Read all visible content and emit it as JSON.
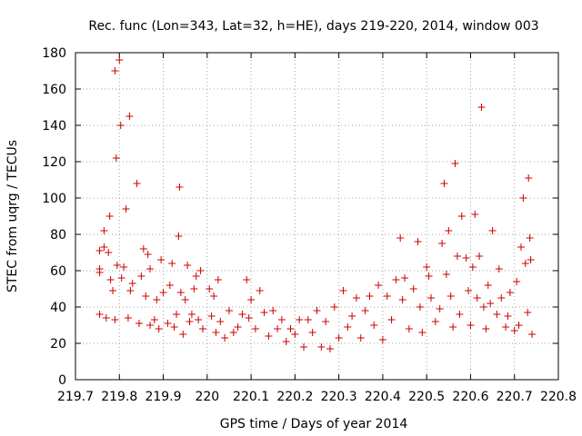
{
  "colors": {
    "series": "#cc0000",
    "grid": "#a0a0a0",
    "axis": "#000000",
    "background": "#ffffff"
  },
  "chart_data": {
    "type": "scatter",
    "title": "Rec. func (Lon=343, Lat=32, h=HE), days 219-220, 2014, window 003",
    "xlabel": "GPS time / Days of year 2014",
    "ylabel": "STEC from uqrg / TECUs",
    "xlim": [
      219.7,
      220.8
    ],
    "ylim": [
      0,
      180
    ],
    "x_ticks": [
      219.7,
      219.8,
      219.9,
      220.0,
      220.1,
      220.2,
      220.3,
      220.4,
      220.5,
      220.6,
      220.7,
      220.8
    ],
    "x_tick_labels": [
      "219.7",
      "219.8",
      "219.9",
      "220",
      "220.1",
      "220.2",
      "220.3",
      "220.4",
      "220.5",
      "220.6",
      "220.7",
      "220.8"
    ],
    "y_ticks": [
      0,
      20,
      40,
      60,
      80,
      100,
      120,
      140,
      160,
      180
    ],
    "y_tick_labels": [
      "0",
      "20",
      "40",
      "60",
      "80",
      "100",
      "120",
      "140",
      "160",
      "180"
    ],
    "grid": true,
    "marker": "+",
    "series": [
      {
        "name": "STEC",
        "points": [
          [
            219.755,
            36
          ],
          [
            219.755,
            59
          ],
          [
            219.755,
            61
          ],
          [
            219.755,
            71
          ],
          [
            219.765,
            73
          ],
          [
            219.765,
            82
          ],
          [
            219.77,
            34
          ],
          [
            219.775,
            70
          ],
          [
            219.778,
            90
          ],
          [
            219.78,
            55
          ],
          [
            219.785,
            49
          ],
          [
            219.79,
            33
          ],
          [
            219.79,
            170
          ],
          [
            219.793,
            122
          ],
          [
            219.795,
            63
          ],
          [
            219.8,
            176
          ],
          [
            219.803,
            140
          ],
          [
            219.805,
            56
          ],
          [
            219.81,
            62
          ],
          [
            219.815,
            94
          ],
          [
            219.82,
            34
          ],
          [
            219.823,
            145
          ],
          [
            219.825,
            49
          ],
          [
            219.83,
            53
          ],
          [
            219.84,
            108
          ],
          [
            219.845,
            31
          ],
          [
            219.85,
            57
          ],
          [
            219.855,
            72
          ],
          [
            219.86,
            46
          ],
          [
            219.865,
            69
          ],
          [
            219.87,
            30
          ],
          [
            219.87,
            61
          ],
          [
            219.88,
            33
          ],
          [
            219.885,
            44
          ],
          [
            219.89,
            28
          ],
          [
            219.895,
            66
          ],
          [
            219.9,
            48
          ],
          [
            219.91,
            31
          ],
          [
            219.915,
            52
          ],
          [
            219.92,
            64
          ],
          [
            219.925,
            29
          ],
          [
            219.93,
            36
          ],
          [
            219.935,
            79
          ],
          [
            219.937,
            106
          ],
          [
            219.94,
            48
          ],
          [
            219.945,
            25
          ],
          [
            219.95,
            44
          ],
          [
            219.955,
            63
          ],
          [
            219.96,
            32
          ],
          [
            219.965,
            36
          ],
          [
            219.97,
            50
          ],
          [
            219.975,
            57
          ],
          [
            219.98,
            33
          ],
          [
            219.985,
            60
          ],
          [
            219.99,
            28
          ],
          [
            220.005,
            50
          ],
          [
            220.01,
            35
          ],
          [
            220.015,
            46
          ],
          [
            220.02,
            26
          ],
          [
            220.025,
            55
          ],
          [
            220.03,
            32
          ],
          [
            220.04,
            23
          ],
          [
            220.05,
            38
          ],
          [
            220.06,
            26
          ],
          [
            220.07,
            29
          ],
          [
            220.08,
            36
          ],
          [
            220.09,
            55
          ],
          [
            220.095,
            34
          ],
          [
            220.1,
            44
          ],
          [
            220.11,
            28
          ],
          [
            220.12,
            49
          ],
          [
            220.13,
            37
          ],
          [
            220.14,
            24
          ],
          [
            220.15,
            38
          ],
          [
            220.16,
            28
          ],
          [
            220.17,
            33
          ],
          [
            220.18,
            21
          ],
          [
            220.19,
            28
          ],
          [
            220.2,
            25
          ],
          [
            220.21,
            33
          ],
          [
            220.22,
            18
          ],
          [
            220.23,
            33
          ],
          [
            220.24,
            26
          ],
          [
            220.25,
            38
          ],
          [
            220.26,
            18
          ],
          [
            220.27,
            32
          ],
          [
            220.28,
            17
          ],
          [
            220.29,
            40
          ],
          [
            220.3,
            23
          ],
          [
            220.31,
            49
          ],
          [
            220.32,
            29
          ],
          [
            220.33,
            35
          ],
          [
            220.34,
            45
          ],
          [
            220.35,
            23
          ],
          [
            220.36,
            38
          ],
          [
            220.37,
            46
          ],
          [
            220.38,
            30
          ],
          [
            220.39,
            52
          ],
          [
            220.4,
            22
          ],
          [
            220.41,
            46
          ],
          [
            220.42,
            33
          ],
          [
            220.43,
            55
          ],
          [
            220.44,
            78
          ],
          [
            220.445,
            44
          ],
          [
            220.45,
            56
          ],
          [
            220.46,
            28
          ],
          [
            220.47,
            50
          ],
          [
            220.48,
            76
          ],
          [
            220.485,
            40
          ],
          [
            220.49,
            26
          ],
          [
            220.5,
            62
          ],
          [
            220.505,
            57
          ],
          [
            220.51,
            45
          ],
          [
            220.52,
            32
          ],
          [
            220.53,
            39
          ],
          [
            220.535,
            75
          ],
          [
            220.54,
            108
          ],
          [
            220.545,
            58
          ],
          [
            220.55,
            82
          ],
          [
            220.555,
            46
          ],
          [
            220.56,
            29
          ],
          [
            220.565,
            119
          ],
          [
            220.57,
            68
          ],
          [
            220.575,
            36
          ],
          [
            220.58,
            90
          ],
          [
            220.59,
            67
          ],
          [
            220.595,
            49
          ],
          [
            220.6,
            30
          ],
          [
            220.605,
            62
          ],
          [
            220.61,
            91
          ],
          [
            220.615,
            45
          ],
          [
            220.62,
            68
          ],
          [
            220.625,
            150
          ],
          [
            220.63,
            40
          ],
          [
            220.635,
            28
          ],
          [
            220.64,
            52
          ],
          [
            220.645,
            42
          ],
          [
            220.65,
            82
          ],
          [
            220.66,
            36
          ],
          [
            220.665,
            61
          ],
          [
            220.67,
            45
          ],
          [
            220.68,
            29
          ],
          [
            220.685,
            35
          ],
          [
            220.69,
            48
          ],
          [
            220.7,
            27
          ],
          [
            220.705,
            54
          ],
          [
            220.71,
            30
          ],
          [
            220.715,
            73
          ],
          [
            220.72,
            100
          ],
          [
            220.725,
            64
          ],
          [
            220.73,
            37
          ],
          [
            220.732,
            111
          ],
          [
            220.735,
            78
          ],
          [
            220.737,
            66
          ],
          [
            220.74,
            25
          ]
        ]
      }
    ]
  }
}
